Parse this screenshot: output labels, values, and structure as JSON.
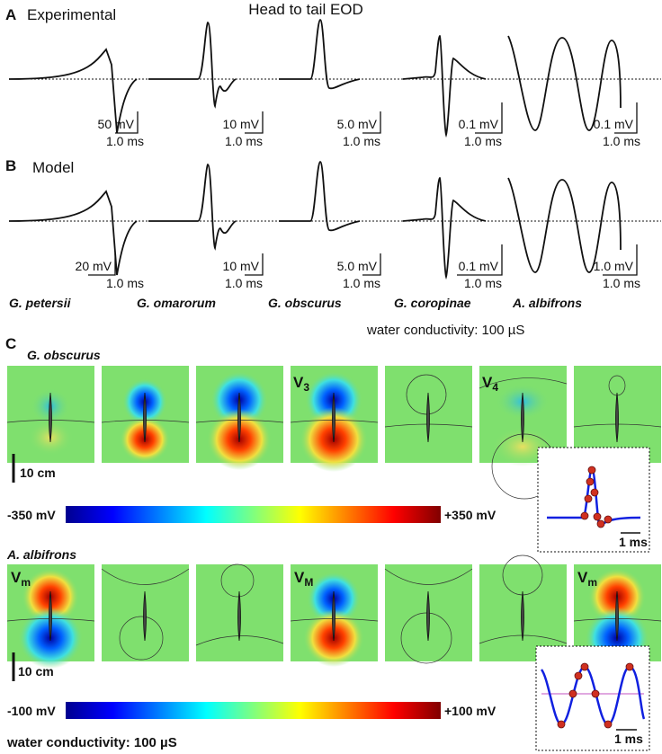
{
  "panel_a": {
    "label": "A",
    "title": "Experimental",
    "heading": "Head to tail EOD",
    "scale_bars": [
      {
        "voltage": "50 mV",
        "time": "1.0 ms"
      },
      {
        "voltage": "10 mV",
        "time": "1.0 ms"
      },
      {
        "voltage": "5.0 mV",
        "time": "1.0 ms"
      },
      {
        "voltage": "0.1 mV",
        "time": "1.0 ms"
      },
      {
        "voltage": "0.1 mV",
        "time": "1.0 ms"
      }
    ]
  },
  "panel_b": {
    "label": "B",
    "title": "Model",
    "scale_bars": [
      {
        "voltage": "20 mV",
        "time": "1.0 ms"
      },
      {
        "voltage": "10 mV",
        "time": "1.0 ms"
      },
      {
        "voltage": "5.0 mV",
        "time": "1.0 ms"
      },
      {
        "voltage": "0.1 mV",
        "time": "1.0 ms"
      },
      {
        "voltage": "1.0 mV",
        "time": "1.0 ms"
      }
    ],
    "species": [
      "G. petersii",
      "G. omarorum",
      "G. obscurus",
      "G. coropinae",
      "A. albifrons"
    ],
    "conductivity": "water conductivity: 100 µS"
  },
  "panel_c": {
    "label": "C",
    "rows": [
      {
        "species": "G. obscurus",
        "frame_labels": [
          {
            "symbol": "V",
            "subscript": "3"
          },
          {
            "symbol": "V",
            "subscript": "4"
          }
        ],
        "scale": "10 cm",
        "colorbar": {
          "min": "-350 mV",
          "max": "+350 mV"
        },
        "inset_time": "1 ms"
      },
      {
        "species": "A. albifrons",
        "frame_labels": [
          {
            "symbol": "V",
            "subscript": "m"
          },
          {
            "symbol": "V",
            "subscript": "M"
          },
          {
            "symbol": "V",
            "subscript": "m"
          }
        ],
        "scale": "10 cm",
        "colorbar": {
          "min": "-100 mV",
          "max": "+100 mV"
        },
        "inset_time": "1 ms"
      }
    ],
    "conductivity": "water conductivity: 100 µS"
  }
}
